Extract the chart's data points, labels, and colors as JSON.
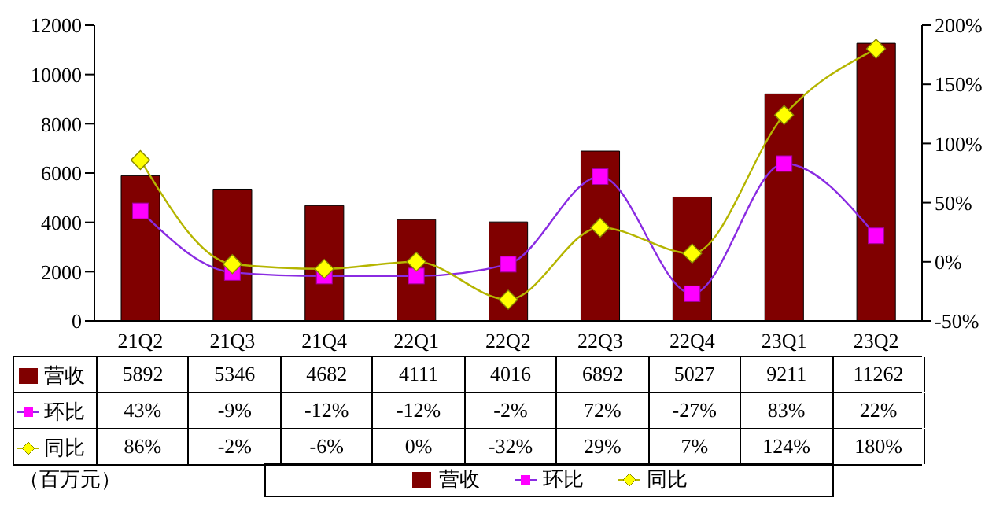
{
  "chart_data": {
    "type": "bar",
    "categories": [
      "21Q2",
      "21Q3",
      "21Q4",
      "22Q1",
      "22Q2",
      "22Q3",
      "22Q4",
      "23Q1",
      "23Q2"
    ],
    "series": [
      {
        "name": "营收",
        "color": "#800000",
        "values": [
          5892,
          5346,
          4682,
          4111,
          4016,
          6892,
          5027,
          9211,
          11262
        ],
        "value_labels": [
          "5892",
          "5346",
          "4682",
          "4111",
          "4016",
          "6892",
          "5027",
          "9211",
          "11262"
        ]
      },
      {
        "name": "环比",
        "type": "line",
        "axis": "y2",
        "marker": "square",
        "color": "#ff00ff",
        "values": [
          43,
          -9,
          -12,
          -12,
          -2,
          72,
          -27,
          83,
          22
        ],
        "value_labels": [
          "43%",
          "-9%",
          "-12%",
          "-12%",
          "-2%",
          "72%",
          "-27%",
          "83%",
          "22%"
        ]
      },
      {
        "name": "同比",
        "type": "line",
        "axis": "y2",
        "marker": "diamond",
        "color": "#ffff00",
        "values": [
          86,
          -2,
          -6,
          0,
          -32,
          29,
          7,
          124,
          180
        ],
        "value_labels": [
          "86%",
          "-2%",
          "-6%",
          "0%",
          "-32%",
          "29%",
          "7%",
          "124%",
          "180%"
        ]
      }
    ],
    "ylim": [
      0,
      12000
    ],
    "yticks": [
      0,
      2000,
      4000,
      6000,
      8000,
      10000,
      12000
    ],
    "y2lim": [
      -50,
      200
    ],
    "y2ticks": [
      {
        "value": -50,
        "label": "-50%"
      },
      {
        "value": 0,
        "label": "0%"
      },
      {
        "value": 50,
        "label": "50%"
      },
      {
        "value": 100,
        "label": "100%"
      },
      {
        "value": 150,
        "label": "150%"
      },
      {
        "value": 200,
        "label": "200%"
      }
    ],
    "legend": "bottom",
    "annotations": [
      "（百万元）"
    ]
  }
}
